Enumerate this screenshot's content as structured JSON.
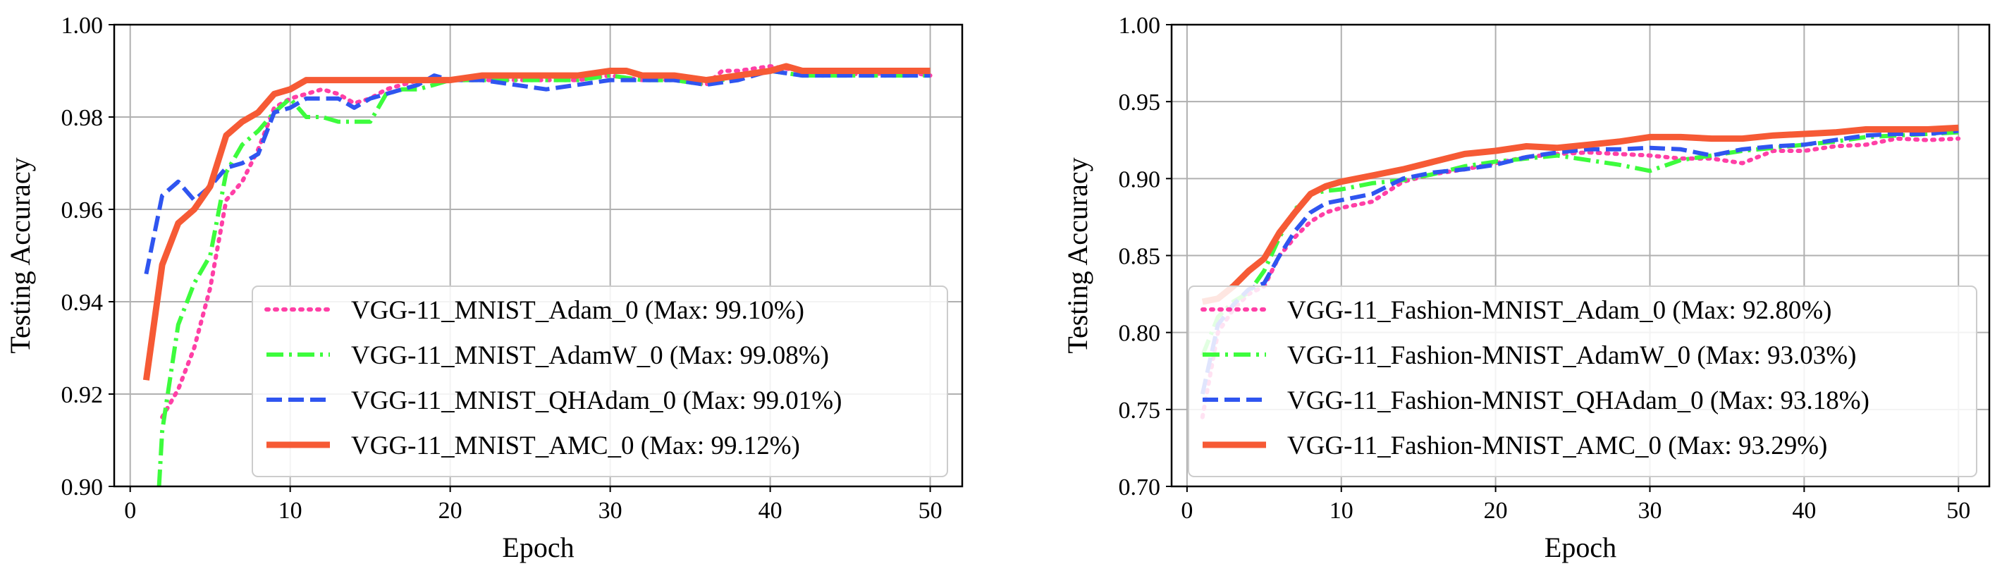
{
  "chart_data": [
    {
      "type": "line",
      "title": "",
      "xlabel": "Epoch",
      "ylabel": "Testing Accuracy",
      "xlim": [
        -1,
        52
      ],
      "ylim": [
        0.9,
        1.0
      ],
      "xticks": [
        0,
        10,
        20,
        30,
        40,
        50
      ],
      "yticks": [
        0.9,
        0.92,
        0.94,
        0.96,
        0.98,
        1.0
      ],
      "x_tick_labels": [
        "0",
        "10",
        "20",
        "30",
        "40",
        "50"
      ],
      "y_tick_labels": [
        "0.90",
        "0.92",
        "0.94",
        "0.96",
        "0.98",
        "1.00"
      ],
      "grid": true,
      "legend_position": "lower-right",
      "series": [
        {
          "name": "VGG-11_MNIST_Adam_0 (Max: 99.10%)",
          "color": "#ff3fa6",
          "style": "dotted",
          "x": [
            2,
            3,
            4,
            5,
            6,
            7,
            8,
            9,
            10,
            11,
            12,
            13,
            14,
            15,
            16,
            17,
            18,
            19,
            20,
            22,
            24,
            26,
            28,
            30,
            32,
            34,
            36,
            37,
            38,
            40,
            42,
            44,
            46,
            48,
            50
          ],
          "y": [
            0.915,
            0.921,
            0.93,
            0.943,
            0.962,
            0.966,
            0.973,
            0.982,
            0.984,
            0.985,
            0.986,
            0.985,
            0.983,
            0.984,
            0.986,
            0.987,
            0.988,
            0.988,
            0.988,
            0.988,
            0.988,
            0.988,
            0.988,
            0.989,
            0.988,
            0.988,
            0.987,
            0.99,
            0.99,
            0.991,
            0.99,
            0.99,
            0.989,
            0.99,
            0.989
          ]
        },
        {
          "name": "VGG-11_MNIST_AdamW_0 (Max: 99.08%)",
          "color": "#3dfc3d",
          "style": "dashdot",
          "x": [
            1.8,
            2,
            3,
            4,
            5,
            6,
            7,
            8,
            9,
            10,
            11,
            12,
            13,
            14,
            15,
            16,
            17,
            18,
            19,
            20,
            22,
            24,
            26,
            28,
            30,
            32,
            34,
            36,
            38,
            40,
            42,
            44,
            46,
            48,
            50
          ],
          "y": [
            0.9,
            0.912,
            0.935,
            0.944,
            0.95,
            0.968,
            0.974,
            0.977,
            0.981,
            0.984,
            0.98,
            0.98,
            0.979,
            0.979,
            0.979,
            0.985,
            0.986,
            0.986,
            0.987,
            0.988,
            0.988,
            0.988,
            0.988,
            0.988,
            0.989,
            0.988,
            0.988,
            0.987,
            0.989,
            0.99,
            0.989,
            0.989,
            0.989,
            0.989,
            0.989
          ]
        },
        {
          "name": "VGG-11_MNIST_QHAdam_0 (Max: 99.01%)",
          "color": "#2f55f0",
          "style": "dashed",
          "x": [
            1,
            2,
            3,
            4,
            5,
            6,
            7,
            8,
            9,
            10,
            11,
            12,
            13,
            14,
            15,
            16,
            17,
            18,
            19,
            20,
            22,
            24,
            26,
            28,
            30,
            32,
            34,
            36,
            38,
            40,
            42,
            44,
            46,
            48,
            50
          ],
          "y": [
            0.946,
            0.963,
            0.966,
            0.962,
            0.965,
            0.969,
            0.97,
            0.972,
            0.981,
            0.982,
            0.984,
            0.984,
            0.984,
            0.982,
            0.984,
            0.985,
            0.986,
            0.987,
            0.989,
            0.988,
            0.988,
            0.987,
            0.986,
            0.987,
            0.988,
            0.988,
            0.988,
            0.987,
            0.988,
            0.99,
            0.989,
            0.989,
            0.989,
            0.989,
            0.989
          ]
        },
        {
          "name": "VGG-11_MNIST_AMC_0 (Max: 99.12%)",
          "color": "#f65a35",
          "style": "solid",
          "x": [
            1,
            2,
            3,
            4,
            5,
            6,
            7,
            8,
            9,
            10,
            11,
            12,
            13,
            14,
            15,
            16,
            17,
            18,
            19,
            20,
            22,
            24,
            26,
            28,
            30,
            31,
            32,
            33,
            34,
            36,
            38,
            40,
            41,
            42,
            44,
            46,
            48,
            50
          ],
          "y": [
            0.923,
            0.948,
            0.957,
            0.96,
            0.965,
            0.976,
            0.979,
            0.981,
            0.985,
            0.986,
            0.988,
            0.988,
            0.988,
            0.988,
            0.988,
            0.988,
            0.988,
            0.988,
            0.988,
            0.988,
            0.989,
            0.989,
            0.989,
            0.989,
            0.99,
            0.99,
            0.989,
            0.989,
            0.989,
            0.988,
            0.989,
            0.99,
            0.991,
            0.99,
            0.99,
            0.99,
            0.99,
            0.99
          ]
        }
      ]
    },
    {
      "type": "line",
      "title": "",
      "xlabel": "Epoch",
      "ylabel": "Testing Accuracy",
      "xlim": [
        -1,
        52
      ],
      "ylim": [
        0.7,
        1.0
      ],
      "xticks": [
        0,
        10,
        20,
        30,
        40,
        50
      ],
      "yticks": [
        0.7,
        0.75,
        0.8,
        0.85,
        0.9,
        0.95,
        1.0
      ],
      "x_tick_labels": [
        "0",
        "10",
        "20",
        "30",
        "40",
        "50"
      ],
      "y_tick_labels": [
        "0.70",
        "0.75",
        "0.80",
        "0.85",
        "0.90",
        "0.95",
        "1.00"
      ],
      "grid": true,
      "legend_position": "lower-right",
      "series": [
        {
          "name": "VGG-11_Fashion-MNIST_Adam_0 (Max: 92.80%)",
          "color": "#ff3fa6",
          "style": "dotted",
          "x": [
            1,
            2,
            3,
            4,
            5,
            6,
            7,
            8,
            9,
            10,
            12,
            14,
            16,
            18,
            20,
            22,
            24,
            26,
            28,
            30,
            32,
            34,
            36,
            38,
            40,
            42,
            44,
            46,
            48,
            50
          ],
          "y": [
            0.745,
            0.8,
            0.815,
            0.825,
            0.83,
            0.85,
            0.862,
            0.872,
            0.878,
            0.881,
            0.885,
            0.898,
            0.903,
            0.906,
            0.91,
            0.914,
            0.916,
            0.917,
            0.916,
            0.915,
            0.913,
            0.913,
            0.91,
            0.918,
            0.918,
            0.921,
            0.922,
            0.926,
            0.925,
            0.926
          ]
        },
        {
          "name": "VGG-11_Fashion-MNIST_AdamW_0 (Max: 93.03%)",
          "color": "#3dfc3d",
          "style": "dashdot",
          "x": [
            1,
            2,
            3,
            4,
            5,
            6,
            7,
            8,
            9,
            10,
            12,
            14,
            16,
            18,
            20,
            22,
            24,
            26,
            28,
            30,
            32,
            34,
            36,
            38,
            40,
            42,
            44,
            46,
            48,
            50
          ],
          "y": [
            0.785,
            0.81,
            0.82,
            0.826,
            0.84,
            0.862,
            0.88,
            0.89,
            0.892,
            0.893,
            0.897,
            0.899,
            0.903,
            0.908,
            0.911,
            0.913,
            0.915,
            0.912,
            0.909,
            0.905,
            0.912,
            0.915,
            0.918,
            0.92,
            0.922,
            0.924,
            0.927,
            0.928,
            0.929,
            0.93
          ]
        },
        {
          "name": "VGG-11_Fashion-MNIST_QHAdam_0 (Max: 93.18%)",
          "color": "#2f55f0",
          "style": "dashed",
          "x": [
            1,
            2,
            3,
            4,
            5,
            6,
            7,
            8,
            9,
            10,
            12,
            14,
            16,
            18,
            20,
            22,
            24,
            26,
            28,
            30,
            32,
            34,
            36,
            38,
            40,
            42,
            44,
            46,
            48,
            50
          ],
          "y": [
            0.76,
            0.805,
            0.818,
            0.828,
            0.832,
            0.85,
            0.866,
            0.878,
            0.884,
            0.886,
            0.89,
            0.9,
            0.904,
            0.906,
            0.909,
            0.914,
            0.917,
            0.919,
            0.919,
            0.92,
            0.919,
            0.915,
            0.919,
            0.921,
            0.922,
            0.925,
            0.928,
            0.929,
            0.929,
            0.931
          ]
        },
        {
          "name": "VGG-11_Fashion-MNIST_AMC_0 (Max: 93.29%)",
          "color": "#f65a35",
          "style": "solid",
          "x": [
            1,
            2,
            3,
            4,
            5,
            6,
            7,
            8,
            9,
            10,
            12,
            14,
            16,
            18,
            20,
            22,
            24,
            26,
            28,
            30,
            32,
            34,
            36,
            38,
            40,
            42,
            44,
            46,
            48,
            50
          ],
          "y": [
            0.82,
            0.822,
            0.83,
            0.84,
            0.848,
            0.865,
            0.878,
            0.89,
            0.895,
            0.898,
            0.902,
            0.906,
            0.911,
            0.916,
            0.918,
            0.921,
            0.92,
            0.922,
            0.924,
            0.927,
            0.927,
            0.926,
            0.926,
            0.928,
            0.929,
            0.93,
            0.932,
            0.932,
            0.932,
            0.933
          ]
        }
      ]
    }
  ]
}
